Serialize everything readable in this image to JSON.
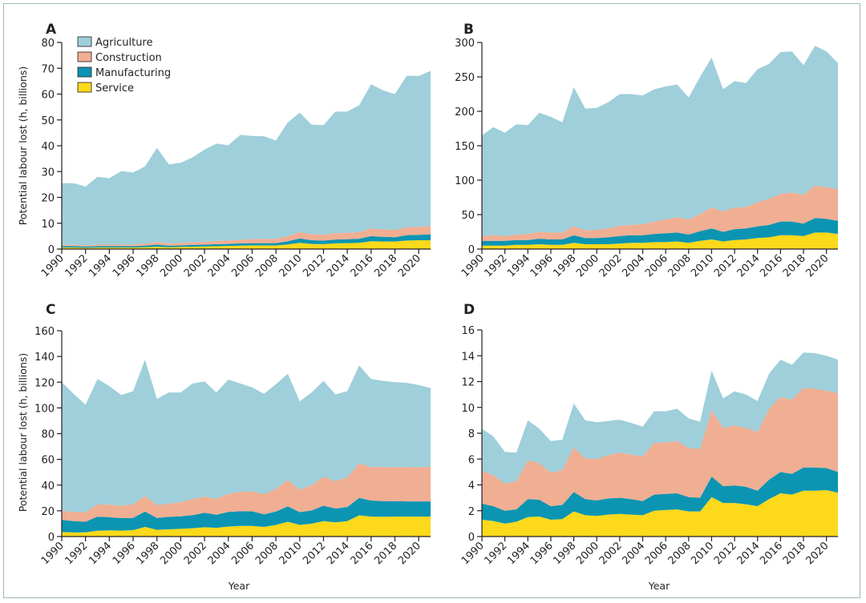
{
  "figure": {
    "y_axis_title": "Potential labour lost (h, billions)",
    "x_axis_title": "Year",
    "legend": [
      {
        "name": "Agriculture",
        "color": "#9ecfda"
      },
      {
        "name": "Construction",
        "color": "#f0ae93"
      },
      {
        "name": "Manufacturing",
        "color": "#0b95b2"
      },
      {
        "name": "Service",
        "color": "#fcd91b"
      }
    ]
  },
  "chart_data": [
    {
      "type": "area",
      "stacked": true,
      "panel": "A",
      "title": "A",
      "xlabel": "",
      "ylabel": "Potential labour lost (h, billions)",
      "ylim": [
        0,
        80
      ],
      "yticks": [
        0,
        10,
        20,
        30,
        40,
        50,
        60,
        70,
        80
      ],
      "xlim": [
        1990,
        2021
      ],
      "xticks": [
        1990,
        1992,
        1994,
        1996,
        1998,
        2000,
        2002,
        2004,
        2006,
        2008,
        2010,
        2012,
        2014,
        2016,
        2018,
        2020
      ],
      "legend_position": "top-left",
      "x": [
        1990,
        1991,
        1992,
        1993,
        1994,
        1995,
        1996,
        1997,
        1998,
        1999,
        2000,
        2001,
        2002,
        2003,
        2004,
        2005,
        2006,
        2007,
        2008,
        2009,
        2010,
        2011,
        2012,
        2013,
        2014,
        2015,
        2016,
        2017,
        2018,
        2019,
        2020,
        2021
      ],
      "series": [
        {
          "name": "Service",
          "values": [
            0.6,
            0.6,
            0.5,
            0.6,
            0.6,
            0.6,
            0.6,
            0.7,
            0.9,
            0.7,
            0.8,
            0.9,
            1.0,
            1.1,
            1.2,
            1.3,
            1.4,
            1.4,
            1.4,
            1.8,
            2.4,
            2.0,
            1.9,
            2.2,
            2.3,
            2.4,
            3.0,
            2.9,
            2.9,
            3.3,
            3.4,
            3.4
          ]
        },
        {
          "name": "Manufacturing",
          "values": [
            0.5,
            0.5,
            0.5,
            0.5,
            0.5,
            0.5,
            0.5,
            0.6,
            0.8,
            0.6,
            0.6,
            0.7,
            0.7,
            0.8,
            0.8,
            0.9,
            0.9,
            0.9,
            0.9,
            1.2,
            1.7,
            1.4,
            1.4,
            1.5,
            1.5,
            1.6,
            2.0,
            1.8,
            1.7,
            2.1,
            2.1,
            2.3
          ]
        },
        {
          "name": "Construction",
          "values": [
            0.5,
            0.5,
            0.5,
            0.6,
            0.6,
            0.6,
            0.7,
            0.8,
            1.0,
            0.9,
            1.0,
            1.0,
            1.1,
            1.2,
            1.3,
            1.4,
            1.5,
            1.6,
            1.7,
            2.0,
            2.5,
            2.3,
            2.3,
            2.4,
            2.5,
            2.6,
            3.0,
            2.9,
            2.8,
            3.1,
            3.1,
            3.3
          ]
        },
        {
          "name": "Agriculture",
          "values": [
            23.9,
            23.9,
            22.7,
            26.3,
            25.7,
            28.5,
            27.8,
            29.9,
            36.5,
            30.6,
            31.0,
            32.9,
            35.7,
            37.7,
            36.9,
            40.6,
            40.0,
            39.8,
            38.0,
            44.0,
            46.2,
            42.5,
            42.4,
            47.1,
            46.9,
            49.1,
            55.8,
            53.9,
            52.6,
            58.6,
            58.4,
            60.0
          ]
        }
      ]
    },
    {
      "type": "area",
      "stacked": true,
      "panel": "B",
      "title": "B",
      "xlabel": "",
      "ylabel": "",
      "ylim": [
        0,
        300
      ],
      "yticks": [
        0,
        50,
        100,
        150,
        200,
        250,
        300
      ],
      "xlim": [
        1990,
        2021
      ],
      "xticks": [
        1990,
        1992,
        1994,
        1996,
        1998,
        2000,
        2002,
        2004,
        2006,
        2008,
        2010,
        2012,
        2014,
        2016,
        2018,
        2020
      ],
      "x": [
        1990,
        1991,
        1992,
        1993,
        1994,
        1995,
        1996,
        1997,
        1998,
        1999,
        2000,
        2001,
        2002,
        2003,
        2004,
        2005,
        2006,
        2007,
        2008,
        2009,
        2010,
        2011,
        2012,
        2013,
        2014,
        2015,
        2016,
        2017,
        2018,
        2019,
        2020,
        2021
      ],
      "series": [
        {
          "name": "Service",
          "values": [
            5,
            5,
            5,
            6,
            6,
            7,
            6,
            6,
            9,
            7,
            7,
            7,
            8,
            9,
            9,
            10,
            10,
            11,
            9,
            12,
            14,
            11,
            13,
            14,
            16,
            17,
            20,
            20,
            19,
            24,
            24,
            22
          ]
        },
        {
          "name": "Manufacturing",
          "values": [
            7,
            7,
            7,
            7,
            7,
            8,
            8,
            8,
            11,
            9,
            9,
            10,
            11,
            11,
            11,
            12,
            13,
            13,
            12,
            14,
            16,
            14,
            16,
            16,
            17,
            18,
            20,
            20,
            18,
            21,
            20,
            19
          ]
        },
        {
          "name": "Construction",
          "values": [
            7,
            8,
            7,
            8,
            9,
            10,
            10,
            10,
            13,
            11,
            12,
            13,
            15,
            15,
            16,
            18,
            20,
            22,
            22,
            25,
            30,
            30,
            31,
            31,
            35,
            38,
            40,
            42,
            42,
            47,
            46,
            46
          ]
        },
        {
          "name": "Agriculture",
          "values": [
            146,
            157,
            150,
            160,
            158,
            173,
            168,
            160,
            202,
            177,
            177,
            183,
            191,
            190,
            187,
            192,
            193,
            193,
            177,
            199,
            218,
            177,
            184,
            180,
            193,
            196,
            206,
            205,
            188,
            203,
            197,
            183
          ]
        }
      ]
    },
    {
      "type": "area",
      "stacked": true,
      "panel": "C",
      "title": "C",
      "xlabel": "Year",
      "ylabel": "Potential labour lost (h, billions)",
      "ylim": [
        0,
        160
      ],
      "yticks": [
        0,
        20,
        40,
        60,
        80,
        100,
        120,
        140,
        160
      ],
      "xlim": [
        1990,
        2021
      ],
      "xticks": [
        1990,
        1992,
        1994,
        1996,
        1998,
        2000,
        2002,
        2004,
        2006,
        2008,
        2010,
        2012,
        2014,
        2016,
        2018,
        2020
      ],
      "x": [
        1990,
        1991,
        1992,
        1993,
        1994,
        1995,
        1996,
        1997,
        1998,
        1999,
        2000,
        2001,
        2002,
        2003,
        2004,
        2005,
        2006,
        2007,
        2008,
        2009,
        2010,
        2011,
        2012,
        2013,
        2014,
        2015,
        2016,
        2017,
        2018,
        2019,
        2020,
        2021
      ],
      "series": [
        {
          "name": "Service",
          "values": [
            3.5,
            3.2,
            3.3,
            4.5,
            4.8,
            4.6,
            5.0,
            7.5,
            5.2,
            5.6,
            6.0,
            6.5,
            7.2,
            6.8,
            7.8,
            8.3,
            8.3,
            7.5,
            9.0,
            11.5,
            9.0,
            10.0,
            12.0,
            11.0,
            12.0,
            16.5,
            15.5,
            15.3,
            15.5,
            15.5,
            15.5,
            15.5
          ]
        },
        {
          "name": "Manufacturing",
          "values": [
            9.5,
            8.8,
            8.2,
            11.0,
            10.2,
            9.7,
            9.5,
            12.0,
            9.3,
            9.7,
            9.7,
            10.2,
            11.3,
            10.2,
            11.3,
            11.4,
            11.3,
            9.8,
            10.5,
            12.0,
            10.0,
            10.3,
            12.0,
            10.8,
            11.0,
            13.5,
            12.5,
            12.2,
            12.0,
            11.8,
            11.8,
            11.8
          ]
        },
        {
          "name": "Construction",
          "values": [
            7.0,
            7.0,
            7.5,
            9.5,
            9.8,
            9.7,
            10.5,
            12.0,
            10.0,
            10.2,
            11.0,
            12.5,
            12.5,
            12.5,
            14.0,
            15.0,
            15.5,
            15.7,
            17.5,
            20.5,
            17.5,
            19.7,
            22.5,
            21.2,
            23.0,
            27.0,
            26.0,
            26.5,
            26.5,
            26.7,
            26.5,
            27.0
          ]
        },
        {
          "name": "Agriculture",
          "values": [
            100.0,
            92.0,
            83.5,
            97.5,
            92.2,
            86.0,
            88.0,
            106.0,
            82.5,
            86.5,
            85.3,
            89.8,
            89.5,
            82.5,
            88.9,
            84.3,
            80.9,
            78.0,
            81.5,
            82.5,
            68.5,
            72.0,
            74.5,
            67.5,
            67.0,
            76.0,
            68.5,
            67.0,
            66.0,
            65.5,
            64.0,
            61.0
          ]
        }
      ]
    },
    {
      "type": "area",
      "stacked": true,
      "panel": "D",
      "title": "D",
      "xlabel": "Year",
      "ylabel": "",
      "ylim": [
        0,
        16
      ],
      "yticks": [
        0,
        2,
        4,
        6,
        8,
        10,
        12,
        14,
        16
      ],
      "xlim": [
        1990,
        2021
      ],
      "xticks": [
        1990,
        1992,
        1994,
        1996,
        1998,
        2000,
        2002,
        2004,
        2006,
        2008,
        2010,
        2012,
        2014,
        2016,
        2018,
        2020
      ],
      "x": [
        1990,
        1991,
        1992,
        1993,
        1994,
        1995,
        1996,
        1997,
        1998,
        1999,
        2000,
        2001,
        2002,
        2003,
        2004,
        2005,
        2006,
        2007,
        2008,
        2009,
        2010,
        2011,
        2012,
        2013,
        2014,
        2015,
        2016,
        2017,
        2018,
        2019,
        2020,
        2021
      ],
      "series": [
        {
          "name": "Service",
          "values": [
            1.3,
            1.2,
            1.0,
            1.15,
            1.5,
            1.55,
            1.3,
            1.35,
            1.95,
            1.65,
            1.6,
            1.7,
            1.75,
            1.7,
            1.65,
            2.0,
            2.05,
            2.1,
            1.95,
            1.95,
            3.05,
            2.6,
            2.6,
            2.5,
            2.35,
            2.9,
            3.35,
            3.25,
            3.55,
            3.55,
            3.6,
            3.4
          ]
        },
        {
          "name": "Manufacturing",
          "values": [
            1.25,
            1.15,
            1.0,
            0.95,
            1.4,
            1.3,
            1.05,
            1.1,
            1.5,
            1.25,
            1.2,
            1.25,
            1.25,
            1.2,
            1.1,
            1.25,
            1.25,
            1.25,
            1.1,
            1.05,
            1.6,
            1.3,
            1.35,
            1.35,
            1.2,
            1.5,
            1.65,
            1.6,
            1.8,
            1.8,
            1.7,
            1.6
          ]
        },
        {
          "name": "Construction",
          "values": [
            2.55,
            2.4,
            2.1,
            2.2,
            3.0,
            2.85,
            2.6,
            2.7,
            3.45,
            3.15,
            3.2,
            3.35,
            3.5,
            3.45,
            3.45,
            4.0,
            4.0,
            4.05,
            3.8,
            3.8,
            5.15,
            4.5,
            4.65,
            4.55,
            4.55,
            5.5,
            5.8,
            5.75,
            6.15,
            6.1,
            6.0,
            6.1
          ]
        },
        {
          "name": "Agriculture",
          "values": [
            3.25,
            3.0,
            2.45,
            2.2,
            3.1,
            2.65,
            2.45,
            2.35,
            3.4,
            2.95,
            2.85,
            2.65,
            2.55,
            2.45,
            2.3,
            2.45,
            2.4,
            2.5,
            2.3,
            2.1,
            3.05,
            2.3,
            2.65,
            2.6,
            2.4,
            2.7,
            2.9,
            2.7,
            2.75,
            2.75,
            2.7,
            2.6
          ]
        }
      ]
    }
  ]
}
